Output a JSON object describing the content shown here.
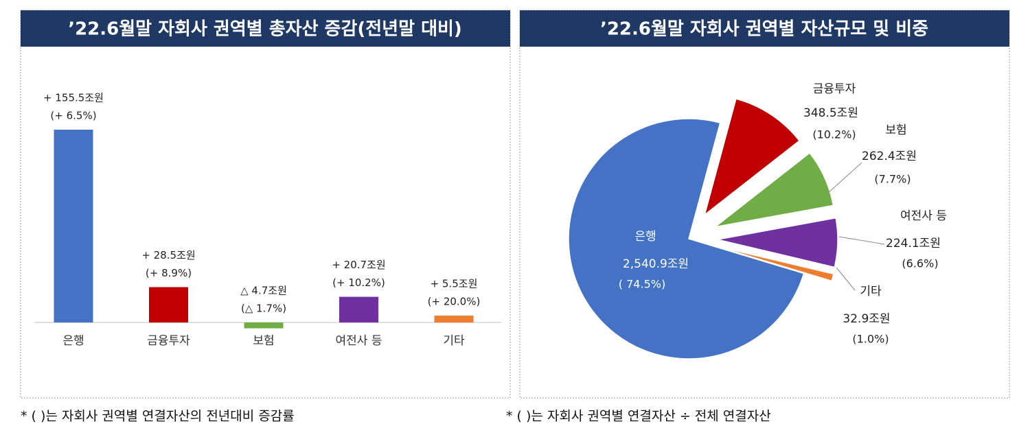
{
  "chart_data": [
    {
      "type": "bar",
      "title": "’22.6월말 자회사 권역별 총자산 증감(전년말 대비)",
      "categories": [
        "은행",
        "금융투자",
        "보험",
        "여전사 등",
        "기타"
      ],
      "values": [
        155.5,
        28.5,
        -4.7,
        20.7,
        5.5
      ],
      "value_labels": [
        "+ 155.5조원",
        "+ 28.5조원",
        "△ 4.7조원",
        "+ 20.7조원",
        "+ 5.5조원"
      ],
      "rate_labels": [
        "(+ 6.5%)",
        "(+ 8.9%)",
        "(△ 1.7%)",
        "(+ 10.2%)",
        "(+ 20.0%)"
      ],
      "colors": [
        "#4472c4",
        "#c00000",
        "#70ad47",
        "#7030a0",
        "#ed7d31"
      ],
      "note": "* (   )는 자회사 권역별 연결자산의 전년대비 증감률"
    },
    {
      "type": "pie",
      "title": "’22.6월말 자회사 권역별 자산규모 및 비중",
      "categories": [
        "은행",
        "금융투자",
        "보험",
        "여전사 등",
        "기타"
      ],
      "values": [
        2540.9,
        348.5,
        262.4,
        224.1,
        32.9
      ],
      "value_labels": [
        "2,540.9조원",
        "348.5조원",
        "262.4조원",
        "224.1조원",
        "32.9조원"
      ],
      "share_labels": [
        "( 74.5%)",
        "(10.2%)",
        "(7.7%)",
        "(6.6%)",
        "(1.0%)"
      ],
      "colors": [
        "#4472c4",
        "#c00000",
        "#70ad47",
        "#7030a0",
        "#ed7d31"
      ],
      "note": "* (   )는 자회사 권역별 연결자산 ÷ 전체 연결자산"
    }
  ]
}
